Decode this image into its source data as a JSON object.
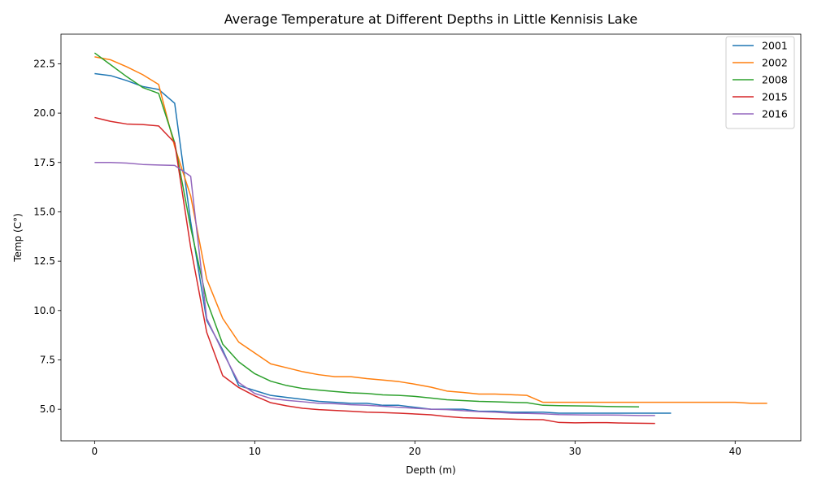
{
  "chart_data": {
    "type": "line",
    "title": "Average Temperature at Different Depths in Little Kennisis Lake",
    "xlabel": "Depth (m)",
    "ylabel": "Temp (C°)",
    "xlim": [
      -2.1,
      44.1
    ],
    "ylim": [
      3.4,
      24.0
    ],
    "xticks": [
      0,
      10,
      20,
      30,
      40
    ],
    "yticks": [
      5.0,
      7.5,
      10.0,
      12.5,
      15.0,
      17.5,
      20.0,
      22.5
    ],
    "xtick_labels": [
      "0",
      "10",
      "20",
      "30",
      "40"
    ],
    "ytick_labels": [
      "5.0",
      "7.5",
      "10.0",
      "12.5",
      "15.0",
      "17.5",
      "20.0",
      "22.5"
    ],
    "grid": false,
    "legend": "upper-right",
    "series": [
      {
        "name": "2001",
        "color": "#1f77b4",
        "x": [
          0,
          1,
          2,
          3,
          4,
          5,
          6,
          7,
          8,
          9,
          10,
          11,
          12,
          13,
          14,
          15,
          16,
          17,
          18,
          19,
          20,
          21,
          22,
          23,
          24,
          25,
          26,
          27,
          28,
          29,
          30,
          31,
          32,
          33,
          34,
          35,
          36
        ],
        "y": [
          22.0,
          21.9,
          21.65,
          21.35,
          21.2,
          20.5,
          14.5,
          9.5,
          8.0,
          6.2,
          5.95,
          5.7,
          5.6,
          5.5,
          5.4,
          5.35,
          5.3,
          5.3,
          5.2,
          5.2,
          5.1,
          5.0,
          5.0,
          5.0,
          4.9,
          4.9,
          4.85,
          4.85,
          4.85,
          4.8,
          4.8,
          4.8,
          4.8,
          4.8,
          4.8,
          4.8,
          4.8
        ]
      },
      {
        "name": "2002",
        "color": "#ff7f0e",
        "x": [
          0,
          1,
          2,
          3,
          4,
          5,
          6,
          7,
          8,
          9,
          10,
          11,
          12,
          13,
          14,
          15,
          16,
          17,
          18,
          19,
          20,
          21,
          22,
          23,
          24,
          25,
          26,
          27,
          28,
          29,
          30,
          31,
          32,
          33,
          34,
          35,
          36,
          37,
          38,
          39,
          40,
          41,
          42
        ],
        "y": [
          22.85,
          22.7,
          22.35,
          21.95,
          21.45,
          18.3,
          15.8,
          11.6,
          9.6,
          8.4,
          7.85,
          7.3,
          7.1,
          6.9,
          6.75,
          6.65,
          6.65,
          6.55,
          6.48,
          6.4,
          6.27,
          6.12,
          5.92,
          5.85,
          5.77,
          5.77,
          5.74,
          5.7,
          5.35,
          5.35,
          5.35,
          5.35,
          5.35,
          5.35,
          5.35,
          5.35,
          5.35,
          5.35,
          5.35,
          5.35,
          5.35,
          5.3,
          5.3
        ]
      },
      {
        "name": "2008",
        "color": "#2ca02c",
        "x": [
          0,
          1,
          2,
          3,
          4,
          5,
          6,
          7,
          8,
          9,
          10,
          11,
          12,
          13,
          14,
          15,
          16,
          17,
          18,
          19,
          20,
          21,
          22,
          23,
          24,
          25,
          26,
          27,
          28,
          29,
          30,
          31,
          32,
          33,
          34
        ],
        "y": [
          23.05,
          22.45,
          21.85,
          21.3,
          21.0,
          18.5,
          14.2,
          10.5,
          8.3,
          7.4,
          6.8,
          6.42,
          6.2,
          6.05,
          5.97,
          5.9,
          5.83,
          5.8,
          5.73,
          5.7,
          5.65,
          5.57,
          5.48,
          5.44,
          5.4,
          5.38,
          5.35,
          5.33,
          5.2,
          5.18,
          5.17,
          5.16,
          5.14,
          5.13,
          5.12
        ]
      },
      {
        "name": "2015",
        "color": "#d62728",
        "x": [
          0,
          1,
          2,
          3,
          4,
          5,
          6,
          7,
          8,
          9,
          10,
          11,
          12,
          13,
          14,
          15,
          16,
          17,
          18,
          19,
          20,
          21,
          22,
          23,
          24,
          25,
          26,
          27,
          28,
          29,
          30,
          31,
          32,
          33,
          34,
          35
        ],
        "y": [
          19.78,
          19.58,
          19.45,
          19.42,
          19.35,
          18.5,
          13.2,
          8.9,
          6.7,
          6.1,
          5.68,
          5.33,
          5.17,
          5.05,
          4.98,
          4.94,
          4.9,
          4.85,
          4.83,
          4.8,
          4.76,
          4.72,
          4.63,
          4.57,
          4.55,
          4.52,
          4.5,
          4.48,
          4.47,
          4.33,
          4.31,
          4.32,
          4.32,
          4.3,
          4.29,
          4.28
        ]
      },
      {
        "name": "2016",
        "color": "#9467bd",
        "x": [
          0,
          1,
          2,
          3,
          4,
          5,
          6,
          7,
          8,
          9,
          10,
          11,
          12,
          13,
          14,
          15,
          16,
          17,
          18,
          19,
          20,
          21,
          22,
          23,
          24,
          25,
          26,
          27,
          28,
          29,
          30,
          31,
          32,
          33,
          34,
          35
        ],
        "y": [
          17.5,
          17.5,
          17.47,
          17.4,
          17.37,
          17.35,
          16.8,
          9.6,
          7.9,
          6.35,
          5.8,
          5.55,
          5.45,
          5.38,
          5.3,
          5.28,
          5.23,
          5.2,
          5.15,
          5.1,
          5.05,
          5.0,
          4.98,
          4.93,
          4.88,
          4.85,
          4.8,
          4.79,
          4.77,
          4.73,
          4.72,
          4.71,
          4.71,
          4.7,
          4.68,
          4.68
        ]
      }
    ]
  }
}
